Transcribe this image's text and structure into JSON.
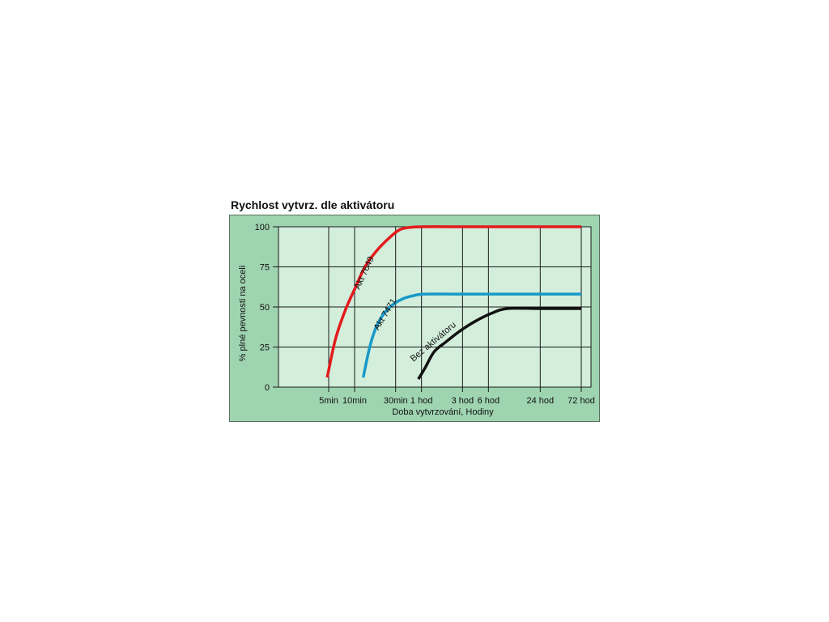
{
  "chart_data": {
    "type": "line",
    "title": "Rychlost vytvrz. dle aktivátoru",
    "xlabel": "Doba vytvrzování, Hodiny",
    "ylabel": "% plné pevnosti na oceli",
    "x_scale": "log",
    "x_unit": "hours",
    "x_ticks": [
      {
        "label": "5min",
        "value": 0.0833
      },
      {
        "label": "10min",
        "value": 0.1667
      },
      {
        "label": "30min",
        "value": 0.5
      },
      {
        "label": "1 hod",
        "value": 1
      },
      {
        "label": "3 hod",
        "value": 3
      },
      {
        "label": "6 hod",
        "value": 6
      },
      {
        "label": "24 hod",
        "value": 24
      },
      {
        "label": "72 hod",
        "value": 72
      }
    ],
    "y_ticks": [
      0,
      25,
      50,
      75,
      100
    ],
    "ylim": [
      0,
      100
    ],
    "grid": true,
    "series": [
      {
        "name": "Akt 7649",
        "color": "#e41a1c",
        "points": [
          [
            0.08,
            6
          ],
          [
            0.1,
            30
          ],
          [
            0.13,
            48
          ],
          [
            0.17,
            62
          ],
          [
            0.22,
            75
          ],
          [
            0.3,
            85
          ],
          [
            0.42,
            93
          ],
          [
            0.55,
            98
          ],
          [
            0.7,
            99.5
          ],
          [
            1,
            100
          ],
          [
            3,
            100
          ],
          [
            6,
            100
          ],
          [
            24,
            100
          ],
          [
            72,
            100
          ]
        ]
      },
      {
        "name": "Akt 7471",
        "color": "#1899c8",
        "points": [
          [
            0.21,
            6
          ],
          [
            0.25,
            25
          ],
          [
            0.3,
            38
          ],
          [
            0.38,
            47
          ],
          [
            0.48,
            52
          ],
          [
            0.6,
            55
          ],
          [
            0.8,
            57
          ],
          [
            1.1,
            58
          ],
          [
            3,
            58
          ],
          [
            6,
            58
          ],
          [
            24,
            58
          ],
          [
            72,
            58
          ]
        ]
      },
      {
        "name": "Bez aktivátoru",
        "color": "#111111",
        "points": [
          [
            0.92,
            5
          ],
          [
            1.1,
            12
          ],
          [
            1.4,
            22
          ],
          [
            1.9,
            28
          ],
          [
            2.8,
            35
          ],
          [
            4.2,
            41
          ],
          [
            6.5,
            46
          ],
          [
            10,
            49
          ],
          [
            24,
            49
          ],
          [
            72,
            49
          ]
        ]
      }
    ]
  }
}
